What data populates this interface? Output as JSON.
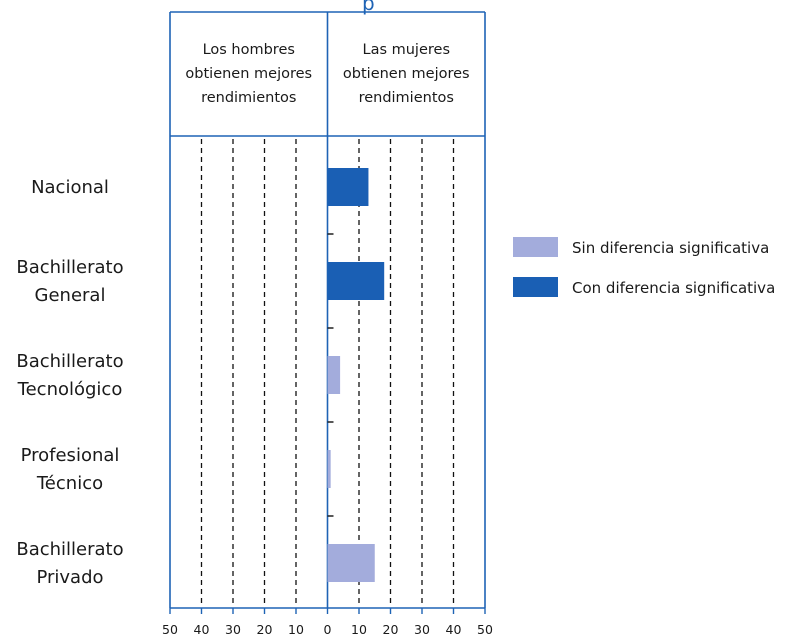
{
  "chart_data": {
    "type": "bar",
    "orientation": "horizontal",
    "title_fragment": "p",
    "panel_headers": {
      "left": [
        "Los hombres",
        "obtienen mejores",
        "rendimientos"
      ],
      "right": [
        "Las mujeres",
        "obtienen mejores",
        "rendimientos"
      ]
    },
    "categories": [
      [
        "Nacional"
      ],
      [
        "Bachillerato",
        "General"
      ],
      [
        "Bachillerato",
        "Tecnológico"
      ],
      [
        "Profesional",
        "Técnico"
      ],
      [
        "Bachillerato",
        "Privado"
      ]
    ],
    "values": [
      13,
      18,
      4,
      1,
      15
    ],
    "significant": [
      true,
      true,
      false,
      false,
      false
    ],
    "xlim": [
      -50,
      50
    ],
    "x_ticks": [
      -50,
      -40,
      -30,
      -20,
      -10,
      0,
      10,
      20,
      30,
      40,
      50
    ],
    "x_tick_labels": [
      "50",
      "40",
      "30",
      "20",
      "10",
      "0",
      "10",
      "20",
      "30",
      "40",
      "50"
    ],
    "grid": "dashed vertical at every 10",
    "legend": [
      {
        "label": "Sin diferencia significativa",
        "color": "#a3acdc"
      },
      {
        "label": "Con diferencia significativa",
        "color": "#1a5fb4"
      }
    ],
    "legend_position": "right"
  }
}
